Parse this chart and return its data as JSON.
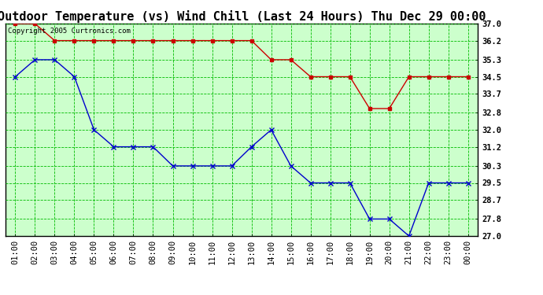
{
  "title": "Outdoor Temperature (vs) Wind Chill (Last 24 Hours) Thu Dec 29 00:00",
  "copyright": "Copyright 2005 Curtronics.com",
  "x_labels": [
    "01:00",
    "02:00",
    "03:00",
    "04:00",
    "05:00",
    "06:00",
    "07:00",
    "08:00",
    "09:00",
    "10:00",
    "11:00",
    "12:00",
    "13:00",
    "14:00",
    "15:00",
    "16:00",
    "17:00",
    "18:00",
    "19:00",
    "20:00",
    "21:00",
    "22:00",
    "23:00",
    "00:00"
  ],
  "temp_red": [
    37.0,
    37.0,
    36.2,
    36.2,
    36.2,
    36.2,
    36.2,
    36.2,
    36.2,
    36.2,
    36.2,
    36.2,
    36.2,
    35.3,
    35.3,
    34.5,
    34.5,
    34.5,
    33.0,
    33.0,
    34.5,
    34.5,
    34.5,
    34.5
  ],
  "temp_blue": [
    34.5,
    35.3,
    35.3,
    34.5,
    32.0,
    31.2,
    31.2,
    31.2,
    30.3,
    30.3,
    30.3,
    30.3,
    31.2,
    32.0,
    30.3,
    29.5,
    29.5,
    29.5,
    27.8,
    27.8,
    27.0,
    29.5,
    29.5,
    29.5
  ],
  "ylim_min": 27.0,
  "ylim_max": 37.0,
  "yticks": [
    27.0,
    27.8,
    28.7,
    29.5,
    30.3,
    31.2,
    32.0,
    32.8,
    33.7,
    34.5,
    35.3,
    36.2,
    37.0
  ],
  "bg_color": "#ffffff",
  "plot_bg_color": "#ccffcc",
  "grid_color": "#00bb00",
  "red_color": "#cc0000",
  "blue_color": "#0000cc",
  "title_fontsize": 11,
  "copyright_fontsize": 6.5,
  "tick_fontsize": 7.5
}
